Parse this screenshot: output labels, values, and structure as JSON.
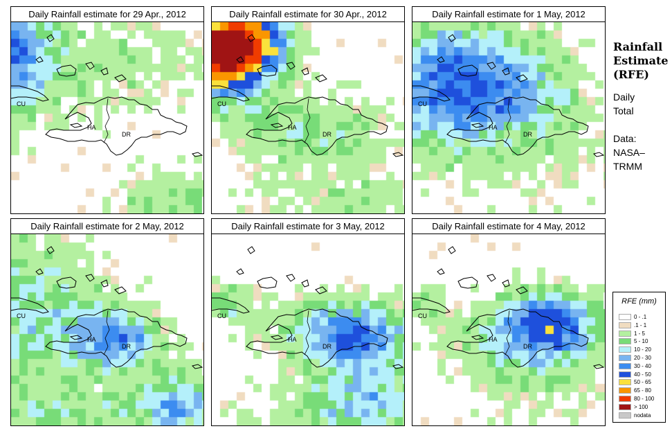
{
  "panels": [
    {
      "title": "Daily Rainfall estimate for  29 Apr., 2012",
      "profile": "apr29",
      "seed": 11
    },
    {
      "title": "Daily Rainfall estimate for  30 Apr., 2012",
      "profile": "apr30",
      "seed": 23
    },
    {
      "title": "Daily Rainfall estimate for  1 May, 2012",
      "profile": "may1",
      "seed": 37
    },
    {
      "title": "Daily Rainfall estimate for  2 May, 2012",
      "profile": "may2",
      "seed": 41
    },
    {
      "title": "Daily Rainfall estimate for  3 May, 2012",
      "profile": "may3",
      "seed": 53
    },
    {
      "title": "Daily Rainfall estimate for  4 May, 2012",
      "profile": "may4",
      "seed": 67
    }
  ],
  "places": {
    "cuba": "CU",
    "haiti": "HA",
    "dominican_republic": "DR"
  },
  "sidebar": {
    "title_line1": "Rainfall",
    "title_line2": "Estimate",
    "title_line3": "(RFE)",
    "period_line1": "Daily",
    "period_line2": "Total",
    "source_line1": "Data:",
    "source_line2": "NASA–",
    "source_line3": "TRMM"
  },
  "legend": {
    "title": "RFE (mm)",
    "classes": [
      {
        "label": "0 - .1",
        "color": "#ffffff"
      },
      {
        "label": ".1 - 1",
        "color": "#f0dcc0"
      },
      {
        "label": "1 - 5",
        "color": "#b4f0a0"
      },
      {
        "label": "5 - 10",
        "color": "#78dc78"
      },
      {
        "label": "10 - 20",
        "color": "#b4f0fa"
      },
      {
        "label": "20 - 30",
        "color": "#78b4f0"
      },
      {
        "label": "30 - 40",
        "color": "#3c8cf0"
      },
      {
        "label": "40 - 50",
        "color": "#1e50dc"
      },
      {
        "label": "50 - 65",
        "color": "#fae13c"
      },
      {
        "label": "65 - 80",
        "color": "#fa9600"
      },
      {
        "label": "80 - 100",
        "color": "#f03c00"
      },
      {
        "label": "> 100",
        "color": "#a01414"
      },
      {
        "label": "nodata",
        "color": "#c8c8c8"
      }
    ]
  }
}
